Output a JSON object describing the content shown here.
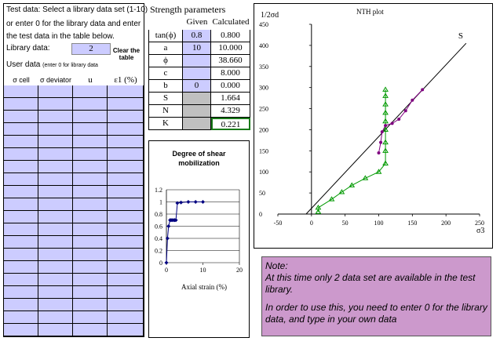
{
  "left_panel": {
    "line1": "Test data: Select a library data set (1-10)",
    "line2": "or enter 0 for the library data and enter",
    "line3": "the test data in the table below.",
    "library_label": "Library data:",
    "library_value": "2",
    "clear_button": "Clear the table",
    "user_data_label": "User data",
    "user_data_hint": "(enter 0 for library data",
    "columns": [
      "σ cell",
      "σ deviator",
      "u",
      "ε1 (%)"
    ]
  },
  "strength": {
    "title": "Strength parameters",
    "col_given": "Given",
    "col_calculated": "Calculated",
    "rows": [
      {
        "label": "tan(ϕ)",
        "given": "0.8",
        "calc": "0.800"
      },
      {
        "label": "a",
        "given": "10",
        "calc": "10.000"
      },
      {
        "label": "ϕ",
        "given": "",
        "calc": "38.660"
      },
      {
        "label": "c",
        "given": "",
        "calc": "8.000"
      },
      {
        "label": "b",
        "given": "0",
        "calc": "0.000"
      },
      {
        "label": "S",
        "given": "",
        "calc": "1.664"
      },
      {
        "label": "N",
        "given": "",
        "calc": "4.329"
      },
      {
        "label": "K",
        "given": "",
        "calc": "0.221"
      }
    ]
  },
  "shear_chart": {
    "title": "Degree of shear mobilization",
    "xlabel": "Axial strain (%)",
    "y_ticks": [
      "0",
      "0.2",
      "0.4",
      "0.6",
      "0.8",
      "1",
      "1.2"
    ],
    "x_ticks": [
      "0",
      "10",
      "20"
    ]
  },
  "nth_chart": {
    "title": "NTH plot",
    "ylabel": "1/2σd",
    "xlabel": "σ3",
    "line_label": "S",
    "y_ticks": [
      "0",
      "50",
      "100",
      "150",
      "200",
      "250",
      "300",
      "350",
      "400",
      "450"
    ],
    "x_ticks": [
      "-50",
      "0",
      "50",
      "100",
      "150",
      "200",
      "250"
    ]
  },
  "note": {
    "line1": "Note:",
    "line2": "At this time only 2 data set are available in the test library.",
    "line3": "In order to use this, you need to enter 0 for the library data, and type in your own data"
  },
  "chart_data": [
    {
      "type": "scatter",
      "title": "Degree of shear mobilization",
      "xlabel": "Axial strain (%)",
      "ylabel": "",
      "xlim": [
        0,
        20
      ],
      "ylim": [
        0,
        1.2
      ],
      "series": [
        {
          "x": [
            0,
            0.3,
            0.6,
            1,
            1.3,
            1.6,
            2,
            2.3,
            2.6,
            3,
            4,
            6,
            8,
            10
          ],
          "y": [
            0.0,
            0.4,
            0.6,
            0.7,
            0.7,
            0.7,
            0.7,
            0.7,
            0.7,
            0.98,
            0.99,
            1.0,
            1.0,
            1.0
          ]
        }
      ]
    },
    {
      "type": "line",
      "title": "NTH plot",
      "xlabel": "σ3",
      "ylabel": "1/2σd",
      "xlim": [
        -50,
        250
      ],
      "ylim": [
        0,
        450
      ],
      "series": [
        {
          "x": [
            -8,
            230
          ],
          "y": [
            0,
            405
          ]
        },
        {
          "x": [
            10,
            10,
            30,
            45,
            60,
            80,
            100,
            110,
            110,
            110,
            110,
            110,
            110,
            110,
            110,
            110
          ],
          "y": [
            5,
            15,
            35,
            52,
            68,
            85,
            100,
            120,
            150,
            170,
            200,
            220,
            240,
            260,
            280,
            295
          ]
        },
        {
          "x": [
            100,
            103,
            105,
            110,
            120,
            130,
            140,
            150,
            165
          ],
          "y": [
            145,
            170,
            195,
            210,
            215,
            225,
            245,
            270,
            295
          ]
        }
      ]
    }
  ]
}
